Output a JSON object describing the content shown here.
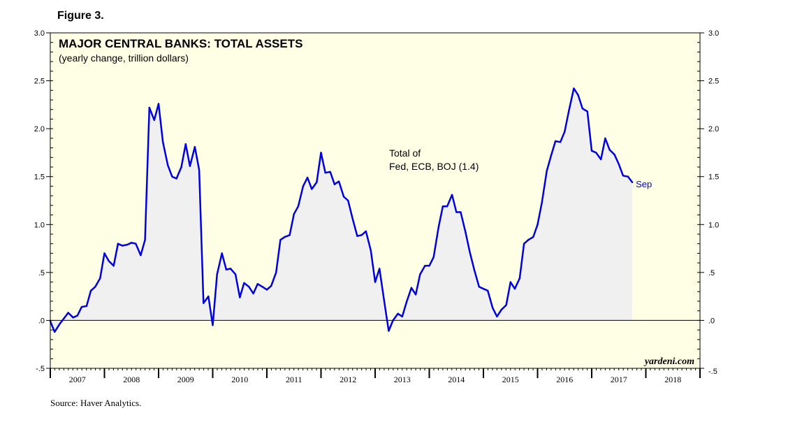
{
  "figure_label": "Figure 3.",
  "source": "Source: Haver Analytics.",
  "brand": "yardeni.com",
  "colors": {
    "plot_bg": "#ffffe6",
    "line": "#0000dd",
    "area": "#f0f0f0"
  },
  "chart_data": {
    "type": "area",
    "title": "MAJOR CENTRAL BANKS: TOTAL ASSETS",
    "subtitle": "(yearly change, trillion dollars)",
    "annotation_line1": "Total of",
    "annotation_line2": "Fed, ECB, BOJ (1.4)",
    "end_label": "Sep",
    "ylim": [
      -0.5,
      3.0
    ],
    "y_ticks": [
      {
        "value": 3.0,
        "label": "3.0"
      },
      {
        "value": 2.5,
        "label": "2.5"
      },
      {
        "value": 2.0,
        "label": "2.0"
      },
      {
        "value": 1.5,
        "label": "1.5"
      },
      {
        "value": 1.0,
        "label": "1.0"
      },
      {
        "value": 0.5,
        "label": ".5"
      },
      {
        "value": 0.0,
        "label": ".0"
      },
      {
        "value": -0.5,
        "label": "-.5"
      }
    ],
    "x_range": [
      2007,
      2019
    ],
    "x_labels": [
      "2007",
      "2008",
      "2009",
      "2010",
      "2011",
      "2012",
      "2013",
      "2014",
      "2015",
      "2016",
      "2017",
      "2018"
    ],
    "series": [
      {
        "name": "Total of Fed, ECB, BOJ",
        "points": [
          [
            2007.0,
            -0.01
          ],
          [
            2007.08,
            -0.12
          ],
          [
            2007.17,
            -0.04
          ],
          [
            2007.25,
            0.02
          ],
          [
            2007.33,
            0.08
          ],
          [
            2007.42,
            0.03
          ],
          [
            2007.5,
            0.05
          ],
          [
            2007.58,
            0.14
          ],
          [
            2007.67,
            0.15
          ],
          [
            2007.75,
            0.31
          ],
          [
            2007.83,
            0.35
          ],
          [
            2007.92,
            0.44
          ],
          [
            2008.0,
            0.7
          ],
          [
            2008.08,
            0.62
          ],
          [
            2008.17,
            0.57
          ],
          [
            2008.25,
            0.8
          ],
          [
            2008.33,
            0.78
          ],
          [
            2008.42,
            0.79
          ],
          [
            2008.5,
            0.81
          ],
          [
            2008.58,
            0.8
          ],
          [
            2008.67,
            0.68
          ],
          [
            2008.75,
            0.84
          ],
          [
            2008.83,
            2.22
          ],
          [
            2008.92,
            2.09
          ],
          [
            2009.0,
            2.26
          ],
          [
            2009.08,
            1.86
          ],
          [
            2009.17,
            1.62
          ],
          [
            2009.25,
            1.5
          ],
          [
            2009.33,
            1.48
          ],
          [
            2009.42,
            1.6
          ],
          [
            2009.5,
            1.84
          ],
          [
            2009.58,
            1.61
          ],
          [
            2009.67,
            1.81
          ],
          [
            2009.75,
            1.57
          ],
          [
            2009.83,
            0.18
          ],
          [
            2009.92,
            0.25
          ],
          [
            2010.0,
            -0.05
          ],
          [
            2010.08,
            0.48
          ],
          [
            2010.17,
            0.7
          ],
          [
            2010.25,
            0.53
          ],
          [
            2010.33,
            0.54
          ],
          [
            2010.42,
            0.48
          ],
          [
            2010.5,
            0.24
          ],
          [
            2010.58,
            0.39
          ],
          [
            2010.67,
            0.35
          ],
          [
            2010.75,
            0.28
          ],
          [
            2010.83,
            0.38
          ],
          [
            2010.92,
            0.35
          ],
          [
            2011.0,
            0.32
          ],
          [
            2011.08,
            0.36
          ],
          [
            2011.17,
            0.5
          ],
          [
            2011.25,
            0.84
          ],
          [
            2011.33,
            0.87
          ],
          [
            2011.42,
            0.89
          ],
          [
            2011.5,
            1.11
          ],
          [
            2011.58,
            1.19
          ],
          [
            2011.67,
            1.4
          ],
          [
            2011.75,
            1.49
          ],
          [
            2011.83,
            1.37
          ],
          [
            2011.92,
            1.44
          ],
          [
            2012.0,
            1.75
          ],
          [
            2012.08,
            1.54
          ],
          [
            2012.17,
            1.55
          ],
          [
            2012.25,
            1.42
          ],
          [
            2012.33,
            1.45
          ],
          [
            2012.42,
            1.29
          ],
          [
            2012.5,
            1.25
          ],
          [
            2012.58,
            1.07
          ],
          [
            2012.67,
            0.88
          ],
          [
            2012.75,
            0.89
          ],
          [
            2012.83,
            0.93
          ],
          [
            2012.92,
            0.73
          ],
          [
            2013.0,
            0.4
          ],
          [
            2013.08,
            0.54
          ],
          [
            2013.17,
            0.19
          ],
          [
            2013.25,
            -0.11
          ],
          [
            2013.33,
            0.0
          ],
          [
            2013.42,
            0.07
          ],
          [
            2013.5,
            0.04
          ],
          [
            2013.58,
            0.19
          ],
          [
            2013.67,
            0.34
          ],
          [
            2013.75,
            0.27
          ],
          [
            2013.83,
            0.48
          ],
          [
            2013.92,
            0.57
          ],
          [
            2014.0,
            0.57
          ],
          [
            2014.08,
            0.66
          ],
          [
            2014.17,
            0.97
          ],
          [
            2014.25,
            1.19
          ],
          [
            2014.33,
            1.19
          ],
          [
            2014.42,
            1.31
          ],
          [
            2014.5,
            1.13
          ],
          [
            2014.58,
            1.13
          ],
          [
            2014.67,
            0.92
          ],
          [
            2014.75,
            0.71
          ],
          [
            2014.83,
            0.53
          ],
          [
            2014.92,
            0.35
          ],
          [
            2015.0,
            0.33
          ],
          [
            2015.08,
            0.31
          ],
          [
            2015.17,
            0.13
          ],
          [
            2015.25,
            0.04
          ],
          [
            2015.33,
            0.11
          ],
          [
            2015.42,
            0.16
          ],
          [
            2015.5,
            0.4
          ],
          [
            2015.58,
            0.33
          ],
          [
            2015.67,
            0.44
          ],
          [
            2015.75,
            0.8
          ],
          [
            2015.83,
            0.84
          ],
          [
            2015.92,
            0.87
          ],
          [
            2016.0,
            1.0
          ],
          [
            2016.08,
            1.23
          ],
          [
            2016.17,
            1.56
          ],
          [
            2016.25,
            1.72
          ],
          [
            2016.33,
            1.87
          ],
          [
            2016.42,
            1.86
          ],
          [
            2016.5,
            1.97
          ],
          [
            2016.58,
            2.19
          ],
          [
            2016.67,
            2.42
          ],
          [
            2016.75,
            2.35
          ],
          [
            2016.83,
            2.21
          ],
          [
            2016.92,
            2.18
          ],
          [
            2017.0,
            1.77
          ],
          [
            2017.08,
            1.75
          ],
          [
            2017.17,
            1.68
          ],
          [
            2017.25,
            1.9
          ],
          [
            2017.33,
            1.78
          ],
          [
            2017.42,
            1.73
          ],
          [
            2017.5,
            1.63
          ],
          [
            2017.58,
            1.51
          ],
          [
            2017.67,
            1.5
          ],
          [
            2017.75,
            1.44
          ]
        ]
      }
    ]
  }
}
